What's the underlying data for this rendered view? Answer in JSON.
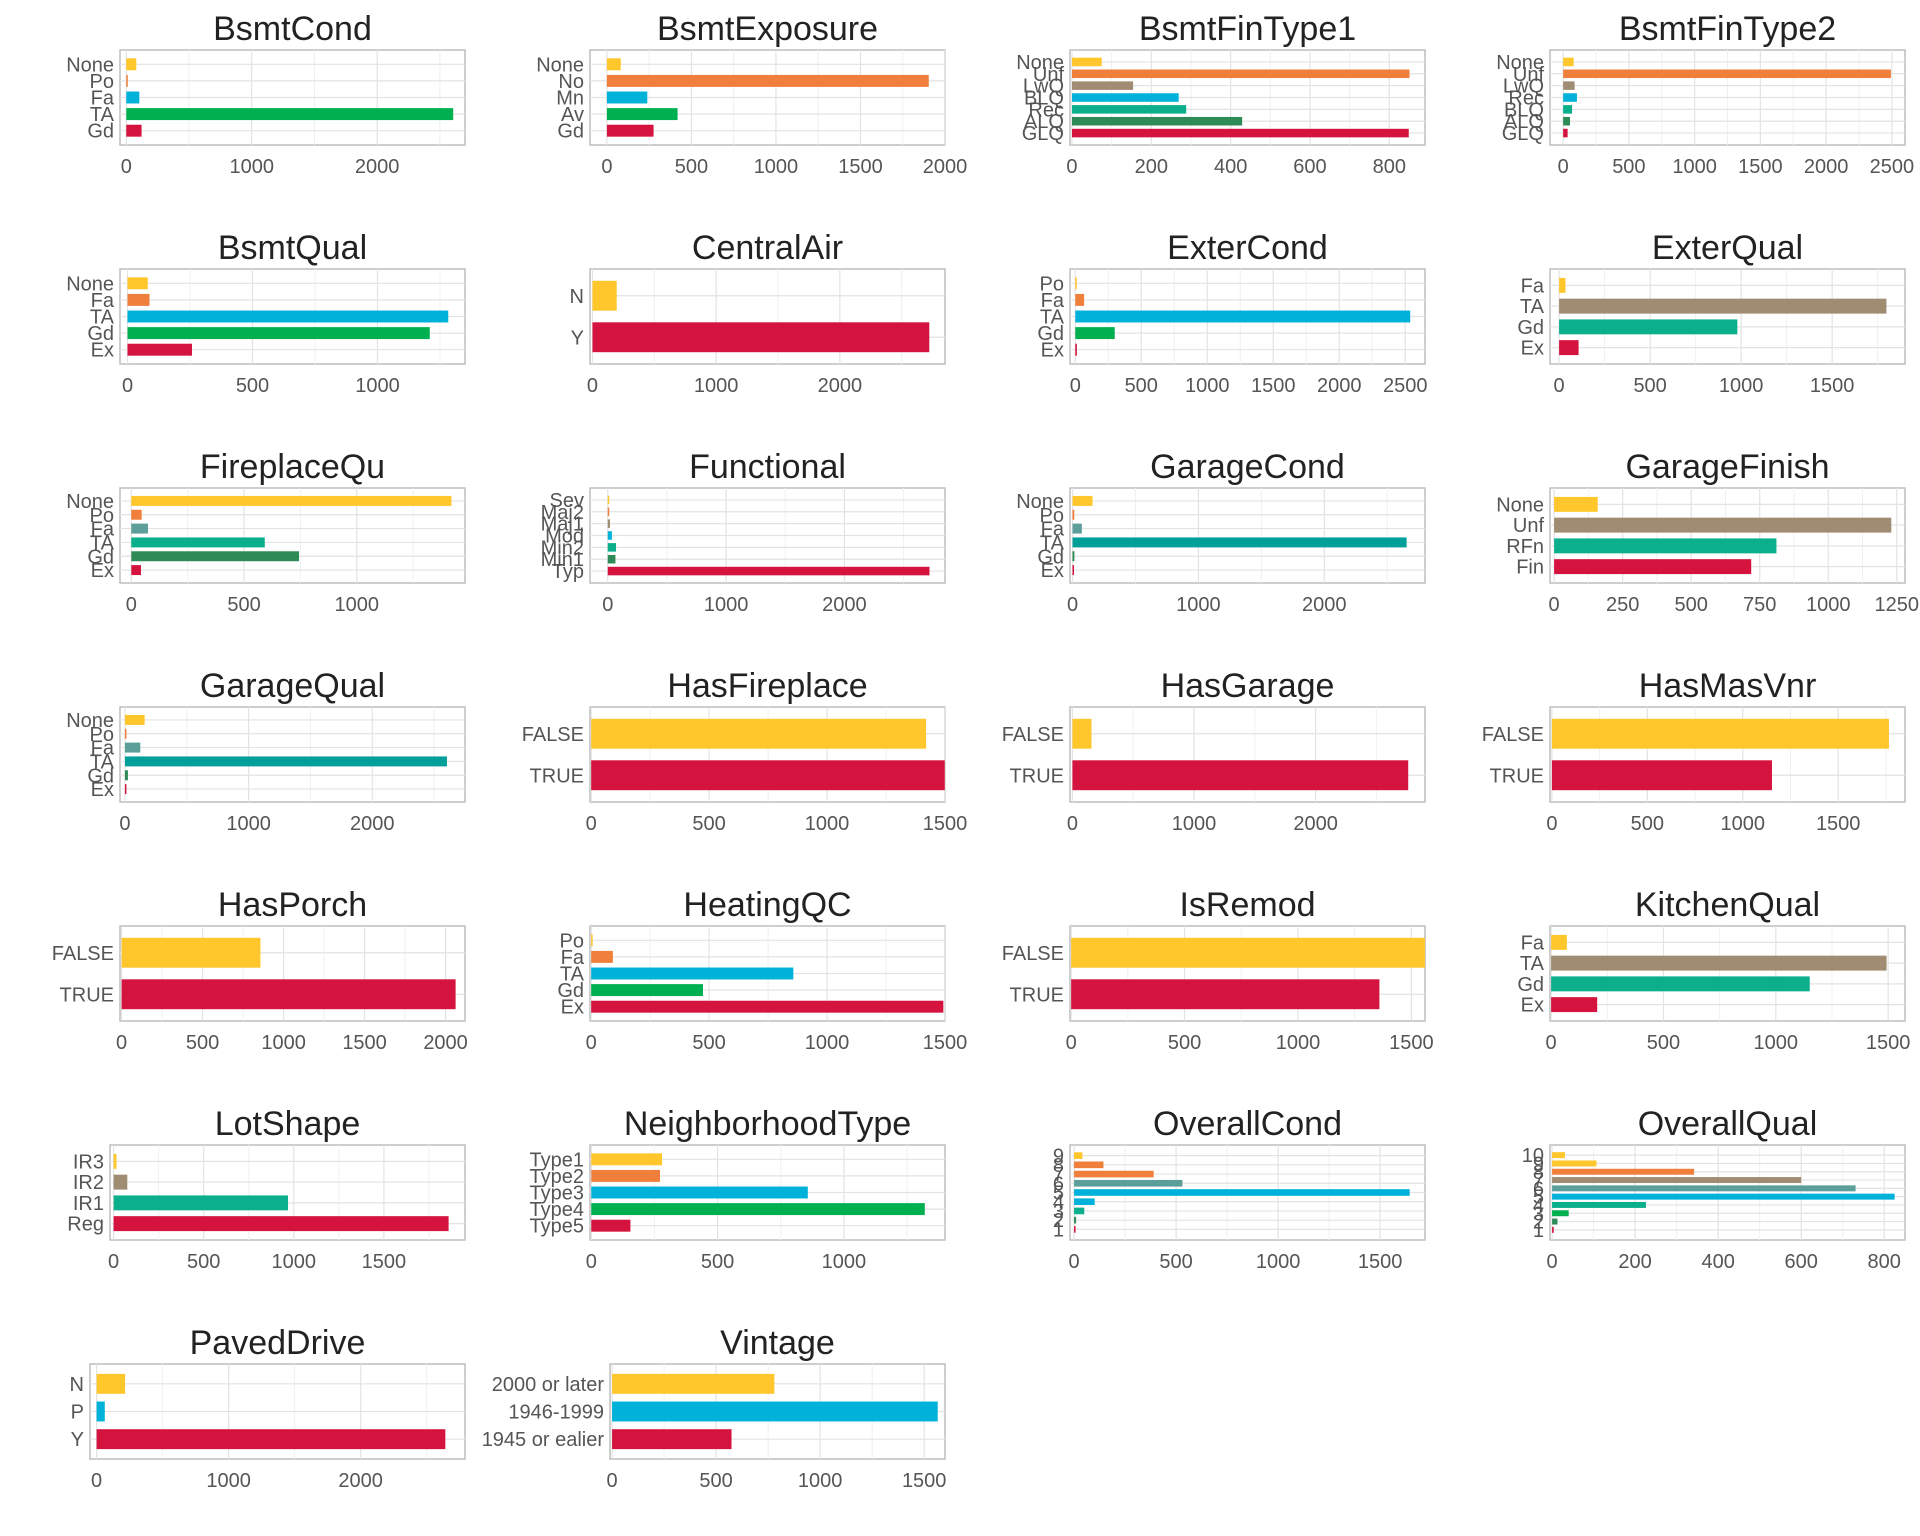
{
  "palette": [
    "#FFC72C",
    "#F07F3C",
    "#A08C72",
    "#00B2DA",
    "#0BAF8C",
    "#009F9A",
    "#00B050",
    "#5B9E9A",
    "#2E8B57",
    "#D4143F"
  ],
  "chart_data": [
    {
      "type": "bar",
      "orientation": "horizontal",
      "title": "BsmtCond",
      "categories": [
        "None",
        "Po",
        "Fa",
        "TA",
        "Gd"
      ],
      "values": [
        80,
        5,
        104,
        2606,
        122
      ],
      "colors": [
        "#FFC72C",
        "#F07F3C",
        "#00B2DA",
        "#00B050",
        "#D4143F"
      ],
      "xlim": [
        -50,
        2700
      ],
      "xticks": [
        0,
        1000,
        2000
      ]
    },
    {
      "type": "bar",
      "orientation": "horizontal",
      "title": "BsmtExposure",
      "categories": [
        "None",
        "No",
        "Mn",
        "Av",
        "Gd"
      ],
      "values": [
        82,
        1904,
        239,
        418,
        276
      ],
      "colors": [
        "#FFC72C",
        "#F07F3C",
        "#00B2DA",
        "#00B050",
        "#D4143F"
      ],
      "xlim": [
        -100,
        2000
      ],
      "xticks": [
        0,
        500,
        1000,
        1500,
        2000
      ]
    },
    {
      "type": "bar",
      "orientation": "horizontal",
      "title": "BsmtFinType1",
      "categories": [
        "None",
        "Unf",
        "LwQ",
        "BLQ",
        "Rec",
        "ALQ",
        "GLQ"
      ],
      "values": [
        75,
        851,
        154,
        269,
        288,
        429,
        849
      ],
      "colors": [
        "#FFC72C",
        "#F07F3C",
        "#A08C72",
        "#00B2DA",
        "#0BAF8C",
        "#2E8B57",
        "#D4143F"
      ],
      "xlim": [
        -5,
        890
      ],
      "xticks": [
        0,
        200,
        400,
        600,
        800
      ]
    },
    {
      "type": "bar",
      "orientation": "horizontal",
      "title": "BsmtFinType2",
      "categories": [
        "None",
        "Unf",
        "LwQ",
        "Rec",
        "BLQ",
        "ALQ",
        "GLQ"
      ],
      "values": [
        80,
        2493,
        87,
        105,
        68,
        52,
        34
      ],
      "colors": [
        "#FFC72C",
        "#F07F3C",
        "#A08C72",
        "#00B2DA",
        "#0BAF8C",
        "#2E8B57",
        "#D4143F"
      ],
      "xlim": [
        -100,
        2600
      ],
      "xticks": [
        0,
        500,
        1000,
        1500,
        2000,
        2500
      ]
    },
    {
      "type": "bar",
      "orientation": "horizontal",
      "title": "BsmtQual",
      "categories": [
        "None",
        "Fa",
        "TA",
        "Gd",
        "Ex"
      ],
      "values": [
        81,
        88,
        1283,
        1209,
        258
      ],
      "colors": [
        "#FFC72C",
        "#F07F3C",
        "#00B2DA",
        "#00B050",
        "#D4143F"
      ],
      "xlim": [
        -30,
        1350
      ],
      "xticks": [
        0,
        500,
        1000
      ]
    },
    {
      "type": "bar",
      "orientation": "horizontal",
      "title": "CentralAir",
      "categories": [
        "N",
        "Y"
      ],
      "values": [
        196,
        2723
      ],
      "colors": [
        "#FFC72C",
        "#D4143F"
      ],
      "xlim": [
        -20,
        2850
      ],
      "xticks": [
        0,
        1000,
        2000
      ]
    },
    {
      "type": "bar",
      "orientation": "horizontal",
      "title": "ExterCond",
      "categories": [
        "Po",
        "Fa",
        "TA",
        "Gd",
        "Ex"
      ],
      "values": [
        3,
        67,
        2538,
        299,
        12
      ],
      "colors": [
        "#FFC72C",
        "#F07F3C",
        "#00B2DA",
        "#00B050",
        "#D4143F"
      ],
      "xlim": [
        -40,
        2650
      ],
      "xticks": [
        0,
        500,
        1000,
        1500,
        2000,
        2500
      ]
    },
    {
      "type": "bar",
      "orientation": "horizontal",
      "title": "ExterQual",
      "categories": [
        "Fa",
        "TA",
        "Gd",
        "Ex"
      ],
      "values": [
        35,
        1798,
        979,
        107
      ],
      "colors": [
        "#FFC72C",
        "#A08C72",
        "#0BAF8C",
        "#D4143F"
      ],
      "xlim": [
        -50,
        1900
      ],
      "xticks": [
        0,
        500,
        1000,
        1500
      ]
    },
    {
      "type": "bar",
      "orientation": "horizontal",
      "title": "FireplaceQu",
      "categories": [
        "None",
        "Po",
        "Fa",
        "TA",
        "Gd",
        "Ex"
      ],
      "values": [
        1420,
        46,
        74,
        592,
        744,
        43
      ],
      "colors": [
        "#FFC72C",
        "#F07F3C",
        "#5B9E9A",
        "#0BAF8C",
        "#2E8B57",
        "#D4143F"
      ],
      "xlim": [
        -50,
        1480
      ],
      "xticks": [
        0,
        500,
        1000
      ]
    },
    {
      "type": "bar",
      "orientation": "horizontal",
      "title": "Functional",
      "categories": [
        "Sev",
        "Maj2",
        "Maj1",
        "Mod",
        "Min2",
        "Min1",
        "Typ"
      ],
      "values": [
        2,
        9,
        19,
        35,
        70,
        65,
        2719
      ],
      "colors": [
        "#FFC72C",
        "#F07F3C",
        "#A08C72",
        "#00B2DA",
        "#0BAF8C",
        "#2E8B57",
        "#D4143F"
      ],
      "xlim": [
        -150,
        2850
      ],
      "xticks": [
        0,
        1000,
        2000
      ]
    },
    {
      "type": "bar",
      "orientation": "horizontal",
      "title": "GarageCond",
      "categories": [
        "None",
        "Po",
        "Fa",
        "TA",
        "Gd",
        "Ex"
      ],
      "values": [
        159,
        14,
        74,
        2654,
        15,
        3
      ],
      "colors": [
        "#FFC72C",
        "#F07F3C",
        "#5B9E9A",
        "#009F9A",
        "#2E8B57",
        "#D4143F"
      ],
      "xlim": [
        -20,
        2800
      ],
      "xticks": [
        0,
        1000,
        2000
      ]
    },
    {
      "type": "bar",
      "orientation": "horizontal",
      "title": "GarageFinish",
      "categories": [
        "None",
        "Unf",
        "RFn",
        "Fin"
      ],
      "values": [
        159,
        1230,
        811,
        719
      ],
      "colors": [
        "#FFC72C",
        "#A08C72",
        "#0BAF8C",
        "#D4143F"
      ],
      "xlim": [
        -15,
        1280
      ],
      "xticks": [
        0,
        250,
        500,
        750,
        1000,
        1250
      ]
    },
    {
      "type": "bar",
      "orientation": "horizontal",
      "title": "GarageQual",
      "categories": [
        "None",
        "Po",
        "Fa",
        "TA",
        "Gd",
        "Ex"
      ],
      "values": [
        159,
        5,
        124,
        2604,
        24,
        3
      ],
      "colors": [
        "#FFC72C",
        "#F07F3C",
        "#5B9E9A",
        "#009F9A",
        "#2E8B57",
        "#D4143F"
      ],
      "xlim": [
        -40,
        2750
      ],
      "xticks": [
        0,
        1000,
        2000
      ]
    },
    {
      "type": "bar",
      "orientation": "horizontal",
      "title": "HasFireplace",
      "categories": [
        "FALSE",
        "TRUE"
      ],
      "values": [
        1420,
        1499
      ],
      "colors": [
        "#FFC72C",
        "#D4143F"
      ],
      "xlim": [
        -5,
        1500
      ],
      "xticks": [
        0,
        500,
        1000,
        1500
      ]
    },
    {
      "type": "bar",
      "orientation": "horizontal",
      "title": "HasGarage",
      "categories": [
        "FALSE",
        "TRUE"
      ],
      "values": [
        157,
        2762
      ],
      "colors": [
        "#FFC72C",
        "#D4143F"
      ],
      "xlim": [
        -20,
        2900
      ],
      "xticks": [
        0,
        1000,
        2000
      ]
    },
    {
      "type": "bar",
      "orientation": "horizontal",
      "title": "HasMasVnr",
      "categories": [
        "FALSE",
        "TRUE"
      ],
      "values": [
        1766,
        1153
      ],
      "colors": [
        "#FFC72C",
        "#D4143F"
      ],
      "xlim": [
        -10,
        1850
      ],
      "xticks": [
        0,
        500,
        1000,
        1500
      ]
    },
    {
      "type": "bar",
      "orientation": "horizontal",
      "title": "HasPorch",
      "categories": [
        "FALSE",
        "TRUE"
      ],
      "values": [
        857,
        2062
      ],
      "colors": [
        "#FFC72C",
        "#D4143F"
      ],
      "xlim": [
        -10,
        2120
      ],
      "xticks": [
        0,
        500,
        1000,
        1500,
        2000
      ]
    },
    {
      "type": "bar",
      "orientation": "horizontal",
      "title": "HeatingQC",
      "categories": [
        "Po",
        "Fa",
        "TA",
        "Gd",
        "Ex"
      ],
      "values": [
        3,
        92,
        857,
        474,
        1493
      ],
      "colors": [
        "#FFC72C",
        "#F07F3C",
        "#00B2DA",
        "#00B050",
        "#D4143F"
      ],
      "xlim": [
        -5,
        1500
      ],
      "xticks": [
        0,
        500,
        1000,
        1500
      ]
    },
    {
      "type": "bar",
      "orientation": "horizontal",
      "title": "IsRemod",
      "categories": [
        "FALSE",
        "TRUE"
      ],
      "values": [
        1560,
        1359
      ],
      "colors": [
        "#FFC72C",
        "#D4143F"
      ],
      "xlim": [
        -5,
        1560
      ],
      "xticks": [
        0,
        500,
        1000,
        1500
      ]
    },
    {
      "type": "bar",
      "orientation": "horizontal",
      "title": "KitchenQual",
      "categories": [
        "Fa",
        "TA",
        "Gd",
        "Ex"
      ],
      "values": [
        70,
        1493,
        1151,
        205
      ],
      "colors": [
        "#FFC72C",
        "#A08C72",
        "#0BAF8C",
        "#D4143F"
      ],
      "xlim": [
        -5,
        1575
      ],
      "xticks": [
        0,
        500,
        1000,
        1500
      ]
    },
    {
      "type": "bar",
      "orientation": "horizontal",
      "title": "LotShape",
      "categories": [
        "IR3",
        "IR2",
        "IR1",
        "Reg"
      ],
      "values": [
        16,
        76,
        968,
        1859
      ],
      "colors": [
        "#FFC72C",
        "#A08C72",
        "#0BAF8C",
        "#D4143F"
      ],
      "xlim": [
        -20,
        1950
      ],
      "xticks": [
        0,
        500,
        1000,
        1500
      ]
    },
    {
      "type": "bar",
      "orientation": "horizontal",
      "title": "NeighborhoodType",
      "categories": [
        "Type1",
        "Type2",
        "Type3",
        "Type4",
        "Type5"
      ],
      "values": [
        280,
        272,
        857,
        1320,
        155
      ],
      "colors": [
        "#FFC72C",
        "#F07F3C",
        "#00B2DA",
        "#00B050",
        "#D4143F"
      ],
      "xlim": [
        -5,
        1400
      ],
      "xticks": [
        0,
        500,
        1000
      ]
    },
    {
      "type": "bar",
      "orientation": "horizontal",
      "title": "OverallCond",
      "categories": [
        "9",
        "8",
        "7",
        "6",
        "5",
        "4",
        "3",
        "2",
        "1"
      ],
      "values": [
        41,
        144,
        390,
        531,
        1645,
        101,
        50,
        10,
        7
      ],
      "colors": [
        "#FFC72C",
        "#F07F3C",
        "#F07F3C",
        "#5B9E9A",
        "#00B2DA",
        "#00B2DA",
        "#0BAF8C",
        "#2E8B57",
        "#D4143F"
      ],
      "xlim": [
        -20,
        1720
      ],
      "xticks": [
        0,
        500,
        1000,
        1500
      ]
    },
    {
      "type": "bar",
      "orientation": "horizontal",
      "title": "OverallQual",
      "categories": [
        "10",
        "9",
        "8",
        "7",
        "6",
        "5",
        "4",
        "3",
        "2",
        "1"
      ],
      "values": [
        31,
        107,
        342,
        600,
        731,
        825,
        226,
        40,
        13,
        4
      ],
      "colors": [
        "#FFC72C",
        "#FFC72C",
        "#F07F3C",
        "#A08C72",
        "#5B9E9A",
        "#00B2DA",
        "#0BAF8C",
        "#00B050",
        "#2E8B57",
        "#D4143F"
      ],
      "xlim": [
        -5,
        850
      ],
      "xticks": [
        0,
        200,
        400,
        600,
        800
      ]
    },
    {
      "type": "bar",
      "orientation": "horizontal",
      "title": "PavedDrive",
      "categories": [
        "N",
        "P",
        "Y"
      ],
      "values": [
        216,
        62,
        2641
      ],
      "colors": [
        "#FFC72C",
        "#00B2DA",
        "#D4143F"
      ],
      "xlim": [
        -50,
        2790
      ],
      "xticks": [
        0,
        1000,
        2000
      ]
    },
    {
      "type": "bar",
      "orientation": "horizontal",
      "title": "Vintage",
      "categories": [
        "2000 or later",
        "1946-1999",
        "1945 or ealier"
      ],
      "values": [
        780,
        1565,
        574
      ],
      "colors": [
        "#FFC72C",
        "#00B2DA",
        "#D4143F"
      ],
      "xlim": [
        -10,
        1600
      ],
      "xticks": [
        0,
        500,
        1000,
        1500
      ]
    }
  ]
}
